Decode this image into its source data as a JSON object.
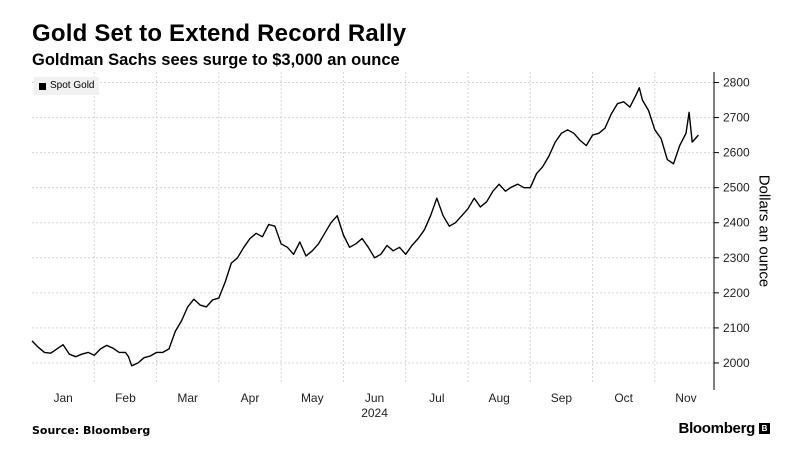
{
  "header": {
    "title": "Gold Set to Extend Record Rally",
    "subtitle": "Goldman Sachs sees surge to $3,000 an ounce"
  },
  "footer": {
    "source": "Source: Bloomberg",
    "brand": "Bloomberg",
    "brand_mark": "B"
  },
  "colors": {
    "line": "#000000",
    "grid": "#d6d6d6",
    "legend_bg": "#f1f1f1"
  },
  "chart_data": {
    "type": "line",
    "legend": [
      "Spot Gold"
    ],
    "ylabel": "Dollars an ounce",
    "year_label": "2024",
    "ylim": [
      1940,
      2830
    ],
    "yticks": [
      2000,
      2100,
      2200,
      2300,
      2400,
      2500,
      2600,
      2700,
      2800
    ],
    "xlim": [
      0,
      10.95
    ],
    "xticks": [
      {
        "label": "Jan",
        "x": 0.5
      },
      {
        "label": "Feb",
        "x": 1.5
      },
      {
        "label": "Mar",
        "x": 2.5
      },
      {
        "label": "Apr",
        "x": 3.5
      },
      {
        "label": "May",
        "x": 4.5
      },
      {
        "label": "Jun",
        "x": 5.5
      },
      {
        "label": "Jul",
        "x": 6.5
      },
      {
        "label": "Aug",
        "x": 7.5
      },
      {
        "label": "Sep",
        "x": 8.5
      },
      {
        "label": "Oct",
        "x": 9.5
      },
      {
        "label": "Nov",
        "x": 10.5
      }
    ],
    "grid": true,
    "series": [
      {
        "name": "Spot Gold",
        "points": [
          [
            0.0,
            2063
          ],
          [
            0.1,
            2045
          ],
          [
            0.2,
            2030
          ],
          [
            0.3,
            2028
          ],
          [
            0.4,
            2040
          ],
          [
            0.5,
            2052
          ],
          [
            0.6,
            2025
          ],
          [
            0.7,
            2018
          ],
          [
            0.8,
            2025
          ],
          [
            0.9,
            2030
          ],
          [
            1.0,
            2022
          ],
          [
            1.1,
            2040
          ],
          [
            1.2,
            2050
          ],
          [
            1.3,
            2042
          ],
          [
            1.4,
            2030
          ],
          [
            1.5,
            2030
          ],
          [
            1.55,
            2018
          ],
          [
            1.6,
            1992
          ],
          [
            1.7,
            2000
          ],
          [
            1.8,
            2015
          ],
          [
            1.9,
            2020
          ],
          [
            2.0,
            2030
          ],
          [
            2.1,
            2030
          ],
          [
            2.2,
            2040
          ],
          [
            2.3,
            2090
          ],
          [
            2.4,
            2120
          ],
          [
            2.5,
            2160
          ],
          [
            2.6,
            2182
          ],
          [
            2.7,
            2165
          ],
          [
            2.8,
            2160
          ],
          [
            2.9,
            2180
          ],
          [
            3.0,
            2185
          ],
          [
            3.1,
            2230
          ],
          [
            3.2,
            2285
          ],
          [
            3.3,
            2300
          ],
          [
            3.4,
            2330
          ],
          [
            3.5,
            2355
          ],
          [
            3.6,
            2370
          ],
          [
            3.7,
            2360
          ],
          [
            3.8,
            2395
          ],
          [
            3.9,
            2390
          ],
          [
            4.0,
            2340
          ],
          [
            4.1,
            2330
          ],
          [
            4.2,
            2310
          ],
          [
            4.3,
            2345
          ],
          [
            4.4,
            2305
          ],
          [
            4.5,
            2320
          ],
          [
            4.6,
            2340
          ],
          [
            4.7,
            2370
          ],
          [
            4.8,
            2400
          ],
          [
            4.9,
            2420
          ],
          [
            5.0,
            2365
          ],
          [
            5.1,
            2330
          ],
          [
            5.2,
            2340
          ],
          [
            5.3,
            2355
          ],
          [
            5.4,
            2330
          ],
          [
            5.5,
            2300
          ],
          [
            5.6,
            2310
          ],
          [
            5.7,
            2335
          ],
          [
            5.8,
            2320
          ],
          [
            5.9,
            2330
          ],
          [
            6.0,
            2310
          ],
          [
            6.1,
            2335
          ],
          [
            6.2,
            2355
          ],
          [
            6.3,
            2380
          ],
          [
            6.4,
            2420
          ],
          [
            6.5,
            2470
          ],
          [
            6.6,
            2420
          ],
          [
            6.7,
            2390
          ],
          [
            6.8,
            2400
          ],
          [
            6.9,
            2420
          ],
          [
            7.0,
            2440
          ],
          [
            7.1,
            2470
          ],
          [
            7.2,
            2445
          ],
          [
            7.3,
            2460
          ],
          [
            7.4,
            2490
          ],
          [
            7.5,
            2510
          ],
          [
            7.6,
            2490
          ],
          [
            7.7,
            2502
          ],
          [
            7.8,
            2510
          ],
          [
            7.9,
            2500
          ],
          [
            8.0,
            2500
          ],
          [
            8.1,
            2540
          ],
          [
            8.2,
            2560
          ],
          [
            8.3,
            2590
          ],
          [
            8.4,
            2630
          ],
          [
            8.5,
            2655
          ],
          [
            8.6,
            2665
          ],
          [
            8.7,
            2655
          ],
          [
            8.8,
            2635
          ],
          [
            8.9,
            2620
          ],
          [
            9.0,
            2650
          ],
          [
            9.1,
            2655
          ],
          [
            9.2,
            2670
          ],
          [
            9.3,
            2710
          ],
          [
            9.4,
            2740
          ],
          [
            9.5,
            2745
          ],
          [
            9.6,
            2730
          ],
          [
            9.7,
            2765
          ],
          [
            9.75,
            2785
          ],
          [
            9.8,
            2750
          ],
          [
            9.9,
            2720
          ],
          [
            10.0,
            2665
          ],
          [
            10.1,
            2640
          ],
          [
            10.2,
            2580
          ],
          [
            10.3,
            2568
          ],
          [
            10.4,
            2620
          ],
          [
            10.5,
            2655
          ],
          [
            10.55,
            2715
          ],
          [
            10.6,
            2630
          ],
          [
            10.7,
            2650
          ]
        ]
      }
    ]
  }
}
